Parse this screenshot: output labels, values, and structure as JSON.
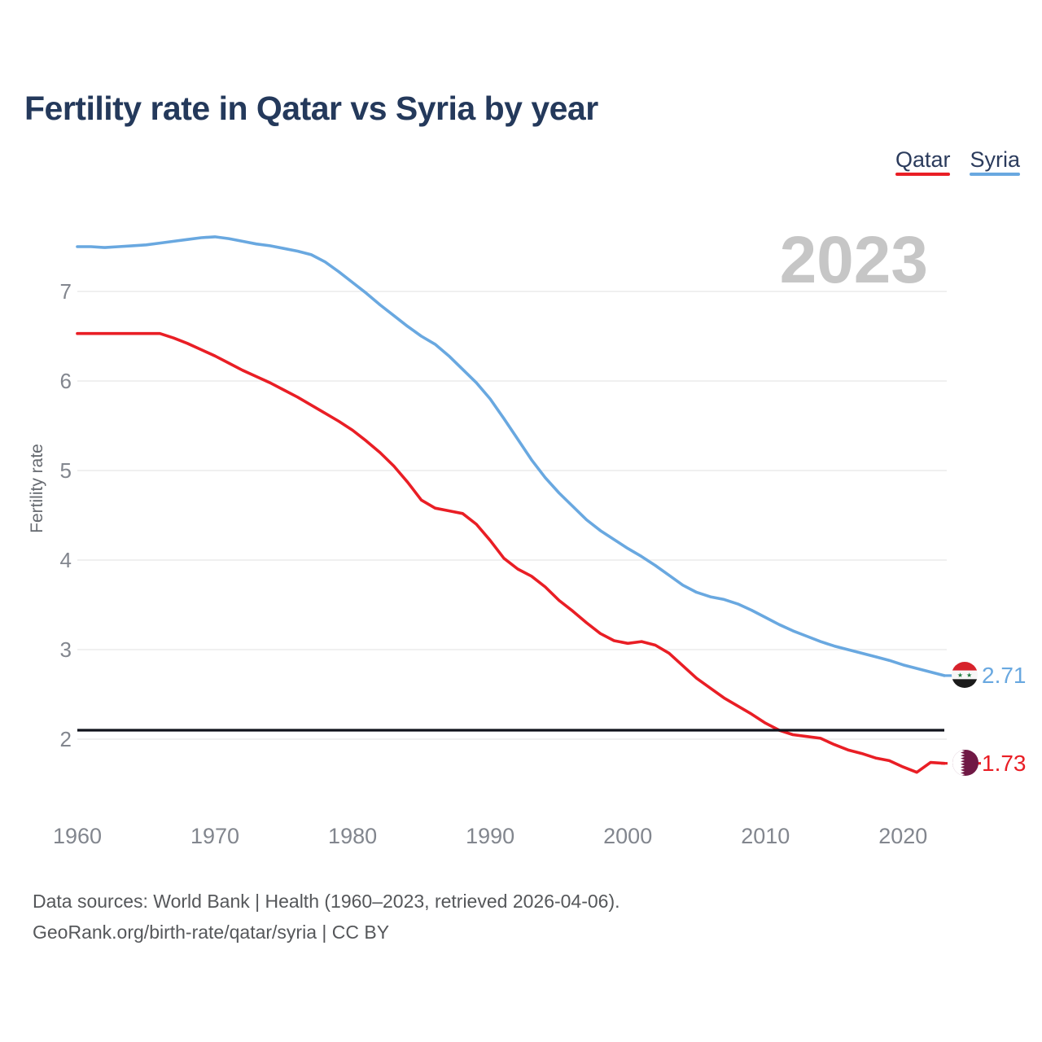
{
  "header": {
    "title": "Fertility rate in Qatar vs Syria by year"
  },
  "legend": {
    "items": [
      {
        "label": "Qatar",
        "color": "#e91e25"
      },
      {
        "label": "Syria",
        "color": "#69a8e0"
      }
    ]
  },
  "watermark_year": "2023",
  "axes": {
    "y_label": "Fertility rate",
    "y_ticks": [
      7,
      6,
      5,
      4,
      3,
      2
    ],
    "x_ticks": [
      1960,
      1970,
      1980,
      1990,
      2000,
      2010,
      2020
    ]
  },
  "annotations": {
    "syria_end_value": "2.71",
    "qatar_end_value": "1.73",
    "replacement_level": 2.1,
    "syria_flag_icon": "syria-flag-icon",
    "qatar_flag_icon": "qatar-flag-icon"
  },
  "footer": {
    "line1": "Data sources: World Bank | Health (1960–2023, retrieved 2026-04-06).",
    "line2": "GeoRank.org/birth-rate/qatar/syria | CC BY"
  },
  "chart_data": {
    "type": "line",
    "title": "Fertility rate in Qatar vs Syria by year",
    "xlabel": "",
    "ylabel": "Fertility rate",
    "x_ticks": [
      1960,
      1970,
      1980,
      1990,
      2000,
      2010,
      2020
    ],
    "y_ticks": [
      2,
      3,
      4,
      5,
      6,
      7
    ],
    "xlim": [
      1960,
      2023
    ],
    "ylim": [
      1.45,
      7.85
    ],
    "grid": "horizontal-only",
    "legend_position": "top-right",
    "reference_line": {
      "value": 2.1,
      "color": "#10131c",
      "meaning": "replacement level"
    },
    "x": [
      1960,
      1961,
      1962,
      1963,
      1964,
      1965,
      1966,
      1967,
      1968,
      1969,
      1970,
      1971,
      1972,
      1973,
      1974,
      1975,
      1976,
      1977,
      1978,
      1979,
      1980,
      1981,
      1982,
      1983,
      1984,
      1985,
      1986,
      1987,
      1988,
      1989,
      1990,
      1991,
      1992,
      1993,
      1994,
      1995,
      1996,
      1997,
      1998,
      1999,
      2000,
      2001,
      2002,
      2003,
      2004,
      2005,
      2006,
      2007,
      2008,
      2009,
      2010,
      2011,
      2012,
      2013,
      2014,
      2015,
      2016,
      2017,
      2018,
      2019,
      2020,
      2021,
      2022,
      2023
    ],
    "series": [
      {
        "name": "Qatar",
        "color": "#e91e25",
        "end_label": "1.73",
        "values": [
          6.53,
          6.53,
          6.53,
          6.53,
          6.53,
          6.53,
          6.53,
          6.48,
          6.42,
          6.35,
          6.28,
          6.2,
          6.12,
          6.05,
          5.98,
          5.9,
          5.82,
          5.73,
          5.64,
          5.55,
          5.45,
          5.33,
          5.2,
          5.05,
          4.87,
          4.67,
          4.58,
          4.55,
          4.52,
          4.4,
          4.22,
          4.02,
          3.9,
          3.82,
          3.7,
          3.55,
          3.43,
          3.3,
          3.18,
          3.1,
          3.07,
          3.09,
          3.05,
          2.96,
          2.82,
          2.68,
          2.57,
          2.46,
          2.37,
          2.28,
          2.18,
          2.1,
          2.05,
          2.03,
          2.01,
          1.94,
          1.88,
          1.84,
          1.79,
          1.76,
          1.69,
          1.63,
          1.74,
          1.73
        ]
      },
      {
        "name": "Syria",
        "color": "#69a8e0",
        "end_label": "2.71",
        "values": [
          7.5,
          7.5,
          7.49,
          7.5,
          7.51,
          7.52,
          7.54,
          7.56,
          7.58,
          7.6,
          7.61,
          7.59,
          7.56,
          7.53,
          7.51,
          7.48,
          7.45,
          7.41,
          7.33,
          7.22,
          7.1,
          6.98,
          6.85,
          6.73,
          6.61,
          6.5,
          6.41,
          6.28,
          6.13,
          5.98,
          5.8,
          5.58,
          5.35,
          5.12,
          4.92,
          4.75,
          4.6,
          4.45,
          4.33,
          4.23,
          4.13,
          4.04,
          3.94,
          3.83,
          3.72,
          3.64,
          3.59,
          3.56,
          3.51,
          3.44,
          3.36,
          3.28,
          3.21,
          3.15,
          3.09,
          3.04,
          3.0,
          2.96,
          2.92,
          2.88,
          2.83,
          2.79,
          2.75,
          2.71
        ]
      }
    ]
  }
}
